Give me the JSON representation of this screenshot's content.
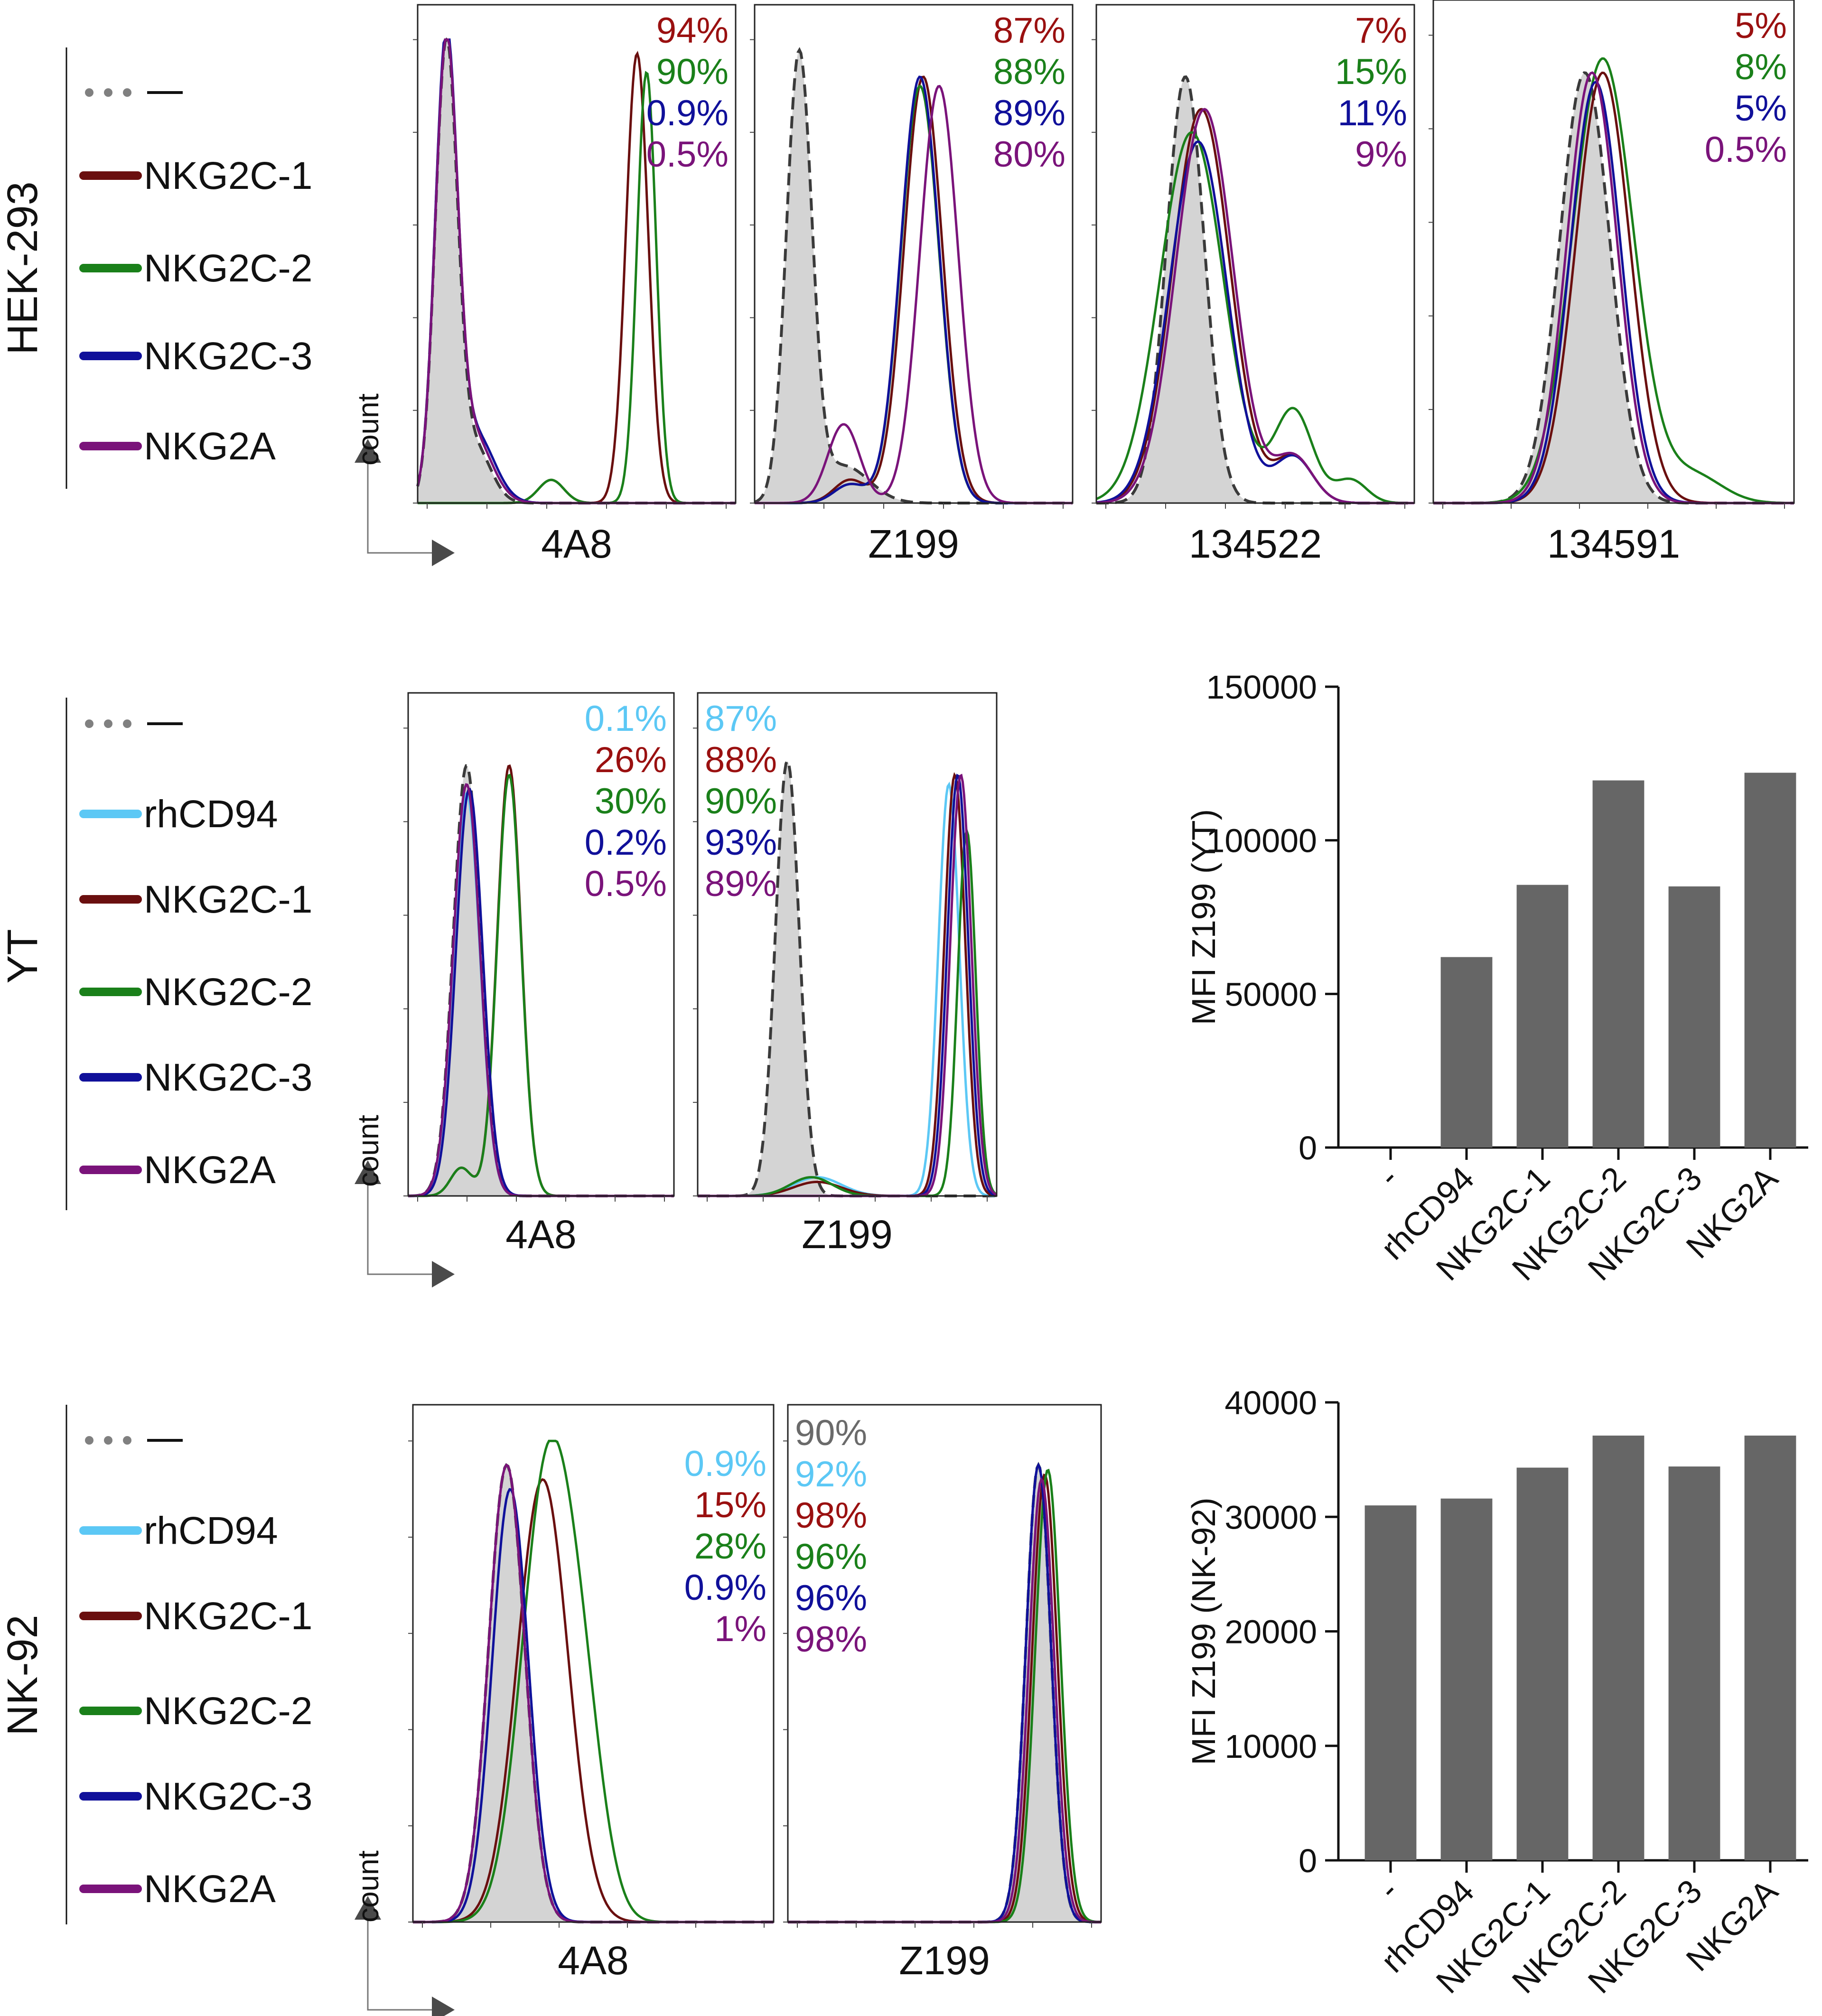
{
  "colors": {
    "none": "#808080",
    "rhCD94": "#5cc8f5",
    "NKG2C-1": "#6a0f0f",
    "NKG2C-2": "#1a801a",
    "NKG2C-3": "#10109a",
    "NKG2A": "#7a137a",
    "pct_none": "#6a6a6a",
    "pct_rhCD94": "#5cc8f5",
    "pct_NKG2C-1": "#9a1010",
    "pct_NKG2C-2": "#1a801a",
    "pct_NKG2C-3": "#10109a",
    "pct_NKG2A": "#7a137a",
    "bar": "#666666",
    "fill": "#d4d4d4"
  },
  "count_label": "count",
  "rows": [
    {
      "cell_line": "HEK-293",
      "legend": [
        {
          "key": "none",
          "label": "—",
          "dotted": true
        },
        {
          "key": "NKG2C-1",
          "label": "NKG2C-1"
        },
        {
          "key": "NKG2C-2",
          "label": "NKG2C-2"
        },
        {
          "key": "NKG2C-3",
          "label": "NKG2C-3"
        },
        {
          "key": "NKG2A",
          "label": "NKG2A"
        }
      ],
      "histograms": [
        {
          "antibody": "4A8",
          "percents": [
            {
              "key": "NKG2C-1",
              "text": "94%"
            },
            {
              "key": "NKG2C-2",
              "text": "90%"
            },
            {
              "key": "NKG2C-3",
              "text": "0.9%"
            },
            {
              "key": "NKG2A",
              "text": "0.5%"
            }
          ]
        },
        {
          "antibody": "Z199",
          "percents": [
            {
              "key": "NKG2C-1",
              "text": "87%"
            },
            {
              "key": "NKG2C-2",
              "text": "88%"
            },
            {
              "key": "NKG2C-3",
              "text": "89%"
            },
            {
              "key": "NKG2A",
              "text": "80%"
            }
          ]
        },
        {
          "antibody": "134522",
          "percents": [
            {
              "key": "NKG2C-1",
              "text": "7%"
            },
            {
              "key": "NKG2C-2",
              "text": "15%"
            },
            {
              "key": "NKG2C-3",
              "text": "11%"
            },
            {
              "key": "NKG2A",
              "text": "9%"
            }
          ]
        },
        {
          "antibody": "134591",
          "percents": [
            {
              "key": "NKG2C-1",
              "text": "5%"
            },
            {
              "key": "NKG2C-2",
              "text": "8%"
            },
            {
              "key": "NKG2C-3",
              "text": "5%"
            },
            {
              "key": "NKG2A",
              "text": "0.5%"
            }
          ]
        }
      ]
    },
    {
      "cell_line": "YT",
      "legend": [
        {
          "key": "none",
          "label": "—",
          "dotted": true
        },
        {
          "key": "rhCD94",
          "label": "rhCD94"
        },
        {
          "key": "NKG2C-1",
          "label": "NKG2C-1"
        },
        {
          "key": "NKG2C-2",
          "label": "NKG2C-2"
        },
        {
          "key": "NKG2C-3",
          "label": "NKG2C-3"
        },
        {
          "key": "NKG2A",
          "label": "NKG2A"
        }
      ],
      "histograms": [
        {
          "antibody": "4A8",
          "percents": [
            {
              "key": "rhCD94",
              "text": "0.1%"
            },
            {
              "key": "NKG2C-1",
              "text": "26%"
            },
            {
              "key": "NKG2C-2",
              "text": "30%"
            },
            {
              "key": "NKG2C-3",
              "text": "0.2%"
            },
            {
              "key": "NKG2A",
              "text": "0.5%"
            }
          ]
        },
        {
          "antibody": "Z199",
          "percents": [
            {
              "key": "rhCD94",
              "text": "87%"
            },
            {
              "key": "NKG2C-1",
              "text": "88%"
            },
            {
              "key": "NKG2C-2",
              "text": "90%"
            },
            {
              "key": "NKG2C-3",
              "text": "93%"
            },
            {
              "key": "NKG2A",
              "text": "89%"
            }
          ]
        }
      ]
    },
    {
      "cell_line": "NK-92",
      "legend": [
        {
          "key": "none",
          "label": "—",
          "dotted": true
        },
        {
          "key": "rhCD94",
          "label": "rhCD94"
        },
        {
          "key": "NKG2C-1",
          "label": "NKG2C-1"
        },
        {
          "key": "NKG2C-2",
          "label": "NKG2C-2"
        },
        {
          "key": "NKG2C-3",
          "label": "NKG2C-3"
        },
        {
          "key": "NKG2A",
          "label": "NKG2A"
        }
      ],
      "histograms": [
        {
          "antibody": "4A8",
          "percents": [
            {
              "key": "rhCD94",
              "text": "0.9%"
            },
            {
              "key": "NKG2C-1",
              "text": "15%"
            },
            {
              "key": "NKG2C-2",
              "text": "28%"
            },
            {
              "key": "NKG2C-3",
              "text": "0.9%"
            },
            {
              "key": "NKG2A",
              "text": "1%"
            }
          ]
        },
        {
          "antibody": "Z199",
          "percents": [
            {
              "key": "none",
              "text": "90%"
            },
            {
              "key": "rhCD94",
              "text": "92%"
            },
            {
              "key": "NKG2C-1",
              "text": "98%"
            },
            {
              "key": "NKG2C-2",
              "text": "96%"
            },
            {
              "key": "NKG2C-3",
              "text": "96%"
            },
            {
              "key": "NKG2A",
              "text": "98%"
            }
          ]
        }
      ]
    }
  ],
  "chart_data": [
    {
      "type": "bar",
      "title": "",
      "categories": [
        "-",
        "rhCD94",
        "NKG2C-1",
        "NKG2C-2",
        "NKG2C-3",
        "NKG2A"
      ],
      "values": [
        0,
        62000,
        85500,
        119500,
        85000,
        122000
      ],
      "ylabel": "MFI Z199 (YT)",
      "xlabel": "",
      "ylim": [
        0,
        150000
      ],
      "yticks": [
        "0",
        "50000",
        "100000",
        "150000"
      ],
      "ytick_values": [
        0,
        50000,
        100000,
        150000
      ],
      "grid": false
    },
    {
      "type": "bar",
      "title": "",
      "categories": [
        "-",
        "rhCD94",
        "NKG2C-1",
        "NKG2C-2",
        "NKG2C-3",
        "NKG2A"
      ],
      "values": [
        31000,
        31600,
        34300,
        37100,
        34400,
        37100
      ],
      "ylabel": "MFI Z199 (NK-92)",
      "xlabel": "",
      "ylim": [
        0,
        40000
      ],
      "yticks": [
        "0",
        "10000",
        "20000",
        "30000",
        "40000"
      ],
      "ytick_values": [
        0,
        10000,
        20000,
        30000,
        40000
      ],
      "grid": false
    }
  ]
}
